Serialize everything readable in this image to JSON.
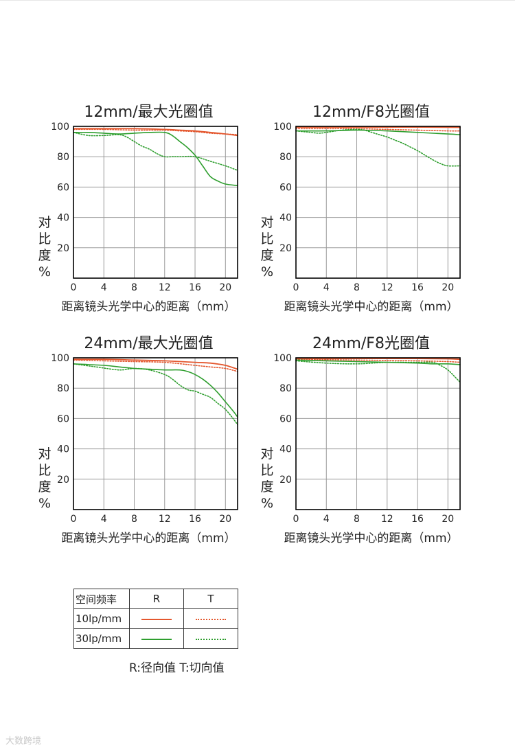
{
  "colors": {
    "R": "#e4572e",
    "T": "#2e9e2e",
    "frame": "#000000",
    "grid": "#9a9a9a"
  },
  "chart_data": [
    {
      "type": "line",
      "title": "12mm/最大光圈值",
      "xlabel": "距离镜头光学中心的距离（mm）",
      "ylabel": "对比度%",
      "xlim": [
        0,
        21.6
      ],
      "ylim": [
        0,
        100
      ],
      "xticks": [
        0,
        4,
        8,
        12,
        16,
        20
      ],
      "yticks": [
        20,
        40,
        60,
        80,
        100
      ],
      "series": [
        {
          "name": "10lp/mm R",
          "x": [
            0,
            4,
            8,
            12,
            14,
            16,
            18,
            20,
            21.6
          ],
          "y": [
            98.5,
            98.5,
            98.5,
            98,
            97.5,
            97,
            96,
            95,
            94
          ]
        },
        {
          "name": "10lp/mm T",
          "x": [
            0,
            4,
            8,
            12,
            14,
            16,
            18,
            20,
            21.6
          ],
          "y": [
            98,
            98,
            97.5,
            97.5,
            97,
            96.5,
            95.5,
            95,
            94.5
          ]
        },
        {
          "name": "30lp/mm R",
          "x": [
            0,
            2,
            4,
            6,
            8,
            10,
            12,
            13,
            14,
            15,
            16,
            17,
            18,
            19,
            20,
            21.6
          ],
          "y": [
            96,
            96,
            95.5,
            95,
            95.5,
            96,
            96,
            94,
            90,
            86,
            81,
            74,
            67,
            64,
            62,
            61
          ]
        },
        {
          "name": "30lp/mm T",
          "x": [
            0,
            2,
            4,
            6,
            7,
            8,
            9,
            10,
            11,
            12,
            13,
            14,
            16,
            18,
            20,
            21.6
          ],
          "y": [
            96,
            94,
            94,
            94.5,
            93,
            90,
            87,
            85,
            82,
            80,
            80,
            80,
            80,
            77,
            74,
            71
          ]
        }
      ]
    },
    {
      "type": "line",
      "title": "12mm/F8光圈值",
      "xlabel": "距离镜头光学中心的距离（mm）",
      "ylabel": "对比度%",
      "xlim": [
        0,
        21.6
      ],
      "ylim": [
        0,
        100
      ],
      "xticks": [
        0,
        4,
        8,
        12,
        16,
        20
      ],
      "yticks": [
        20,
        40,
        60,
        80,
        100
      ],
      "series": [
        {
          "name": "10lp/mm R",
          "x": [
            0,
            8,
            16,
            21.6
          ],
          "y": [
            99.5,
            99.5,
            99.5,
            99.3
          ]
        },
        {
          "name": "10lp/mm T",
          "x": [
            0,
            4,
            8,
            12,
            16,
            20,
            21.6
          ],
          "y": [
            98.5,
            98.5,
            98.5,
            98,
            97.5,
            97,
            97
          ]
        },
        {
          "name": "30lp/mm R",
          "x": [
            0,
            4,
            8,
            12,
            16,
            20,
            21.6
          ],
          "y": [
            97,
            97,
            97.5,
            97,
            96,
            95,
            94.5
          ]
        },
        {
          "name": "30lp/mm T",
          "x": [
            0,
            2,
            3,
            4,
            6,
            8,
            9,
            10,
            11,
            12,
            13,
            14,
            15,
            16,
            17,
            18,
            19,
            20,
            21.6
          ],
          "y": [
            97,
            96,
            95.5,
            96,
            97.5,
            98,
            97.5,
            96,
            94.5,
            93,
            91,
            89,
            86.5,
            84,
            81,
            78,
            75.5,
            74,
            74
          ]
        }
      ]
    },
    {
      "type": "line",
      "title": "24mm/最大光圈值",
      "xlabel": "距离镜头光学中心的距离（mm）",
      "ylabel": "对比度%",
      "xlim": [
        0,
        21.6
      ],
      "ylim": [
        0,
        100
      ],
      "xticks": [
        0,
        4,
        8,
        12,
        16,
        20
      ],
      "yticks": [
        20,
        40,
        60,
        80,
        100
      ],
      "series": [
        {
          "name": "10lp/mm R",
          "x": [
            0,
            4,
            8,
            12,
            16,
            18,
            20,
            21.6
          ],
          "y": [
            99,
            99,
            98.5,
            98,
            97,
            96.5,
            95,
            92.5
          ]
        },
        {
          "name": "10lp/mm T",
          "x": [
            0,
            4,
            8,
            12,
            16,
            18,
            20,
            21.6
          ],
          "y": [
            98.5,
            98,
            97.5,
            97,
            95,
            94,
            93,
            91
          ]
        },
        {
          "name": "30lp/mm R",
          "x": [
            0,
            4,
            6,
            8,
            10,
            12,
            14,
            15,
            16,
            17,
            18,
            19,
            20,
            21,
            21.6
          ],
          "y": [
            96,
            95,
            94,
            93,
            92.5,
            92,
            92,
            91,
            89,
            86,
            82,
            77,
            71,
            65,
            61
          ]
        },
        {
          "name": "30lp/mm T",
          "x": [
            0,
            3,
            6,
            8,
            10,
            12,
            13,
            14,
            15,
            16,
            17,
            18,
            19,
            20,
            21,
            21.6
          ],
          "y": [
            96,
            94,
            92,
            93,
            92,
            89,
            86,
            82,
            79,
            78,
            76,
            74,
            70,
            66,
            60,
            56
          ]
        }
      ]
    },
    {
      "type": "line",
      "title": "24mm/F8光圈值",
      "xlabel": "距离镜头光学中心的距离（mm）",
      "ylabel": "对比度%",
      "xlim": [
        0,
        21.6
      ],
      "ylim": [
        0,
        100
      ],
      "xticks": [
        0,
        4,
        8,
        12,
        16,
        20
      ],
      "yticks": [
        20,
        40,
        60,
        80,
        100
      ],
      "series": [
        {
          "name": "10lp/mm R",
          "x": [
            0,
            8,
            16,
            20,
            21.6
          ],
          "y": [
            99.5,
            99.5,
            99.5,
            99.3,
            99
          ]
        },
        {
          "name": "10lp/mm T",
          "x": [
            0,
            8,
            16,
            20,
            21.6
          ],
          "y": [
            99,
            98.5,
            98,
            97.5,
            97
          ]
        },
        {
          "name": "30lp/mm R",
          "x": [
            0,
            4,
            8,
            12,
            16,
            18,
            20,
            21.6
          ],
          "y": [
            98.5,
            98,
            97.5,
            97,
            96.5,
            96,
            96,
            95.5
          ]
        },
        {
          "name": "30lp/mm T",
          "x": [
            0,
            4,
            8,
            12,
            16,
            18,
            19,
            20,
            21,
            21.6
          ],
          "y": [
            98,
            96.5,
            96,
            97,
            97,
            97,
            95,
            92,
            87,
            84
          ]
        }
      ]
    }
  ],
  "legend": {
    "header": {
      "freq": "空间频率",
      "r": "R",
      "t": "T"
    },
    "rows": [
      {
        "label": "10lp/mm"
      },
      {
        "label": "30lp/mm"
      }
    ],
    "note": "R:径向值 T:切向值"
  },
  "watermark": "大数跨境"
}
